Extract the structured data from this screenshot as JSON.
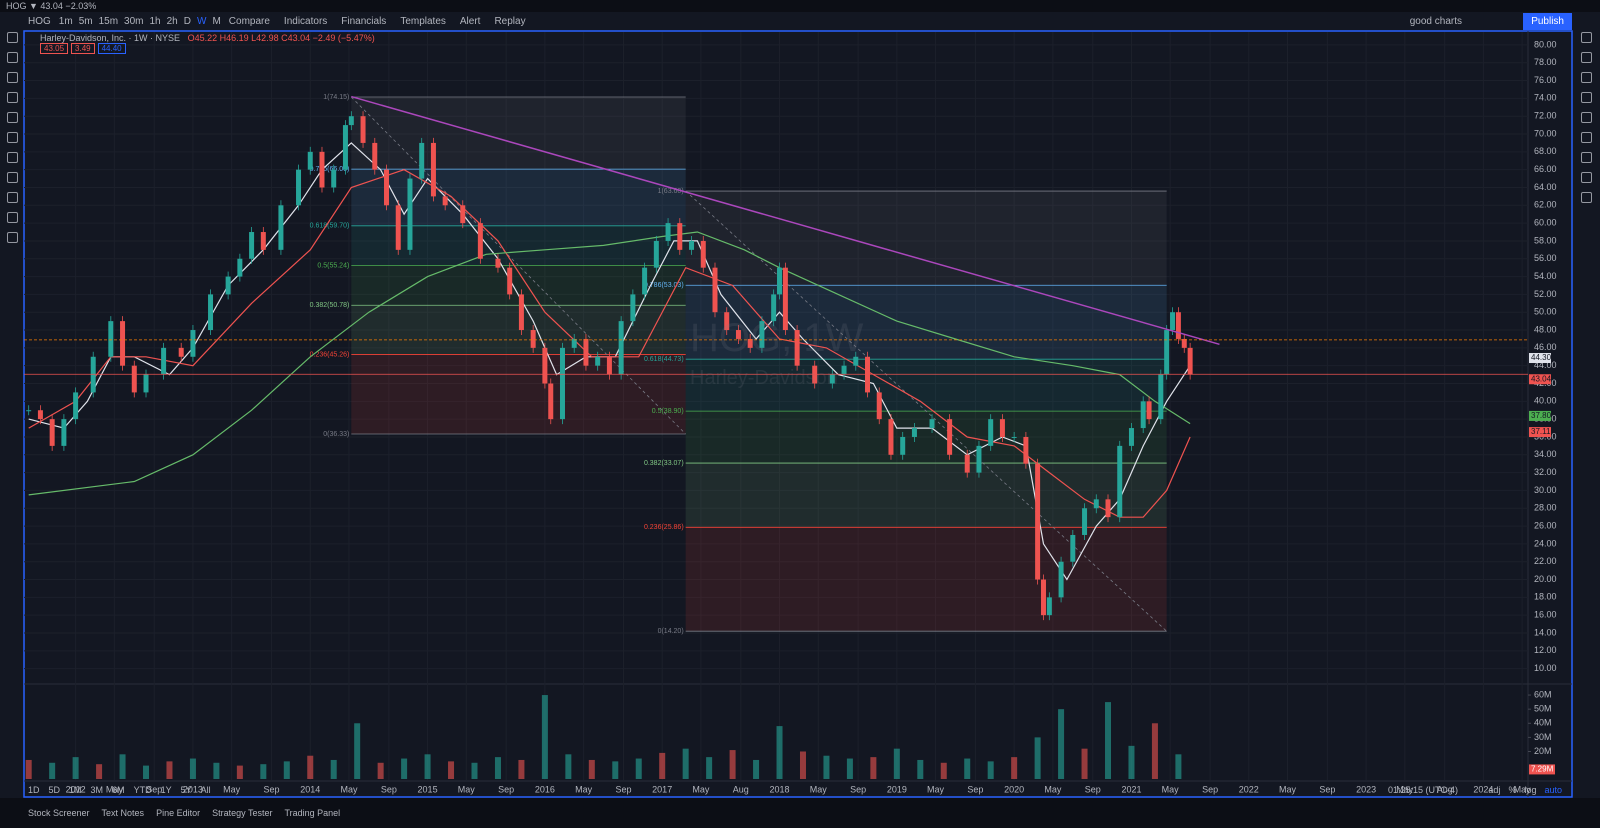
{
  "tab": {
    "title": "HOG ▼ 43.04 −2.03%"
  },
  "toolbar": {
    "symbol": "HOG",
    "intervals": [
      "1m",
      "5m",
      "15m",
      "30m",
      "1h",
      "2h",
      "D",
      "W",
      "M"
    ],
    "buttons": [
      "Compare",
      "Indicators",
      "Financials",
      "Templates",
      "Alert",
      "Replay"
    ],
    "layout_name": "good charts",
    "publish": "Publish"
  },
  "legend": {
    "name": "Harley-Davidson, Inc. · 1W · NYSE",
    "ohlc": "O45.22 H46.19 L42.98 C43.04 −2.49 (−5.47%)",
    "price_boxes": [
      "43.05",
      "3.49",
      "44.40"
    ]
  },
  "watermark": {
    "line1": "HOG, 1W",
    "line2": "Harley-Davidson"
  },
  "chart_data": {
    "type": "candlestick",
    "xlim": [
      2011.56,
      2024.38
    ],
    "ylim": [
      8.5,
      81
    ],
    "yticks": [
      {
        "value": 10,
        "label": "10.00"
      },
      {
        "value": 12,
        "label": "12.00"
      },
      {
        "value": 14,
        "label": "14.00"
      },
      {
        "value": 16,
        "label": "16.00"
      },
      {
        "value": 18,
        "label": "18.00"
      },
      {
        "value": 20,
        "label": "20.00"
      },
      {
        "value": 22,
        "label": "22.00"
      },
      {
        "value": 24,
        "label": "24.00"
      },
      {
        "value": 26,
        "label": "26.00"
      },
      {
        "value": 28,
        "label": "28.00"
      },
      {
        "value": 30,
        "label": "30.00"
      },
      {
        "value": 32,
        "label": "32.00"
      },
      {
        "value": 34,
        "label": "34.00"
      },
      {
        "value": 36,
        "label": "36.00"
      },
      {
        "value": 38,
        "label": "38.00"
      },
      {
        "value": 40,
        "label": "40.00"
      },
      {
        "value": 42,
        "label": "42.00"
      },
      {
        "value": 44,
        "label": "44.00"
      },
      {
        "value": 46,
        "label": "46.00"
      },
      {
        "value": 48,
        "label": "48.00"
      },
      {
        "value": 50,
        "label": "50.00"
      },
      {
        "value": 52,
        "label": "52.00"
      },
      {
        "value": 54,
        "label": "54.00"
      },
      {
        "value": 56,
        "label": "56.00"
      },
      {
        "value": 58,
        "label": "58.00"
      },
      {
        "value": 60,
        "label": "60.00"
      },
      {
        "value": 62,
        "label": "62.00"
      },
      {
        "value": 64,
        "label": "64.00"
      },
      {
        "value": 66,
        "label": "66.00"
      },
      {
        "value": 68,
        "label": "68.00"
      },
      {
        "value": 70,
        "label": "70.00"
      },
      {
        "value": 72,
        "label": "72.00"
      },
      {
        "value": 74,
        "label": "74.00"
      },
      {
        "value": 76,
        "label": "76.00"
      },
      {
        "value": 78,
        "label": "78.00"
      },
      {
        "value": 80,
        "label": "80.00"
      }
    ],
    "xticks": [
      2012,
      {
        "value": 2012.33,
        "label": "May"
      },
      {
        "value": 2012.67,
        "label": "Sep"
      },
      2013,
      {
        "value": 2013.33,
        "label": "May"
      },
      {
        "value": 2013.67,
        "label": "Sep"
      },
      2014,
      {
        "value": 2014.33,
        "label": "May"
      },
      {
        "value": 2014.67,
        "label": "Sep"
      },
      2015,
      {
        "value": 2015.33,
        "label": "May"
      },
      {
        "value": 2015.67,
        "label": "Sep"
      },
      2016,
      {
        "value": 2016.33,
        "label": "May"
      },
      {
        "value": 2016.67,
        "label": "Sep"
      },
      2017,
      {
        "value": 2017.33,
        "label": "May"
      },
      {
        "value": 2017.67,
        "label": "Aug"
      },
      2018,
      {
        "value": 2018.33,
        "label": "May"
      },
      {
        "value": 2018.67,
        "label": "Sep"
      },
      2019,
      {
        "value": 2019.33,
        "label": "May"
      },
      {
        "value": 2019.67,
        "label": "Sep"
      },
      2020,
      {
        "value": 2020.33,
        "label": "May"
      },
      {
        "value": 2020.67,
        "label": "Sep"
      },
      2021,
      {
        "value": 2021.33,
        "label": "May"
      },
      {
        "value": 2021.67,
        "label": "Sep"
      },
      2022,
      {
        "value": 2022.33,
        "label": "May"
      },
      {
        "value": 2022.67,
        "label": "Sep"
      },
      2023,
      {
        "value": 2023.33,
        "label": "May"
      },
      {
        "value": 2023.67,
        "label": "Aug"
      },
      2024,
      {
        "value": 2024.33,
        "label": "May"
      }
    ],
    "x": [
      2011.6,
      2011.7,
      2011.8,
      2011.9,
      2012.0,
      2012.15,
      2012.3,
      2012.4,
      2012.5,
      2012.6,
      2012.75,
      2012.9,
      2013.0,
      2013.15,
      2013.3,
      2013.4,
      2013.5,
      2013.6,
      2013.75,
      2013.9,
      2014.0,
      2014.1,
      2014.2,
      2014.3,
      2014.35,
      2014.45,
      2014.55,
      2014.65,
      2014.75,
      2014.85,
      2014.95,
      2015.05,
      2015.15,
      2015.3,
      2015.45,
      2015.6,
      2015.7,
      2015.8,
      2015.9,
      2016.0,
      2016.05,
      2016.15,
      2016.25,
      2016.35,
      2016.45,
      2016.55,
      2016.65,
      2016.75,
      2016.85,
      2016.95,
      2017.05,
      2017.15,
      2017.25,
      2017.35,
      2017.45,
      2017.55,
      2017.65,
      2017.75,
      2017.85,
      2017.95,
      2018.0,
      2018.05,
      2018.15,
      2018.3,
      2018.45,
      2018.55,
      2018.65,
      2018.75,
      2018.85,
      2018.95,
      2019.05,
      2019.15,
      2019.3,
      2019.45,
      2019.6,
      2019.7,
      2019.8,
      2019.9,
      2020.0,
      2020.1,
      2020.2,
      2020.25,
      2020.3,
      2020.4,
      2020.5,
      2020.6,
      2020.7,
      2020.8,
      2020.9,
      2021.0,
      2021.1,
      2021.15,
      2021.25,
      2021.3,
      2021.35,
      2021.4,
      2021.45,
      2021.5
    ],
    "series": [
      {
        "name": "HOG",
        "up_color": "#26a69a",
        "down_color": "#ef5350",
        "values": [
          39,
          38,
          35,
          38,
          41,
          45,
          49,
          44,
          41,
          43,
          46,
          45,
          48,
          52,
          54,
          56,
          59,
          57,
          62,
          66,
          68,
          64,
          66,
          71,
          72,
          69,
          66,
          62,
          57,
          65,
          69,
          63,
          62,
          60,
          56,
          55,
          52,
          48,
          46,
          42,
          38,
          46,
          47,
          44,
          45,
          43,
          49,
          52,
          55,
          58,
          60,
          57,
          58,
          55,
          50,
          48,
          47,
          46,
          49,
          52,
          55,
          48,
          44,
          42,
          43,
          44,
          45,
          41,
          38,
          34,
          36,
          37,
          38,
          34,
          32,
          35,
          38,
          36,
          36,
          33,
          20,
          16,
          18,
          22,
          25,
          28,
          29,
          27,
          35,
          37,
          40,
          38,
          43,
          48,
          50,
          47,
          46,
          43
        ]
      }
    ],
    "overlays": [
      {
        "color": "#e0e3eb",
        "x": [
          2011.6,
          2011.9,
          2012.1,
          2012.3,
          2012.5,
          2012.8,
          2013.0,
          2013.3,
          2013.6,
          2013.9,
          2014.1,
          2014.35,
          2014.6,
          2014.8,
          2015.0,
          2015.3,
          2015.6,
          2015.9,
          2016.1,
          2016.35,
          2016.6,
          2016.9,
          2017.1,
          2017.3,
          2017.5,
          2017.8,
          2018.0,
          2018.2,
          2018.5,
          2018.8,
          2019.0,
          2019.3,
          2019.6,
          2019.9,
          2020.1,
          2020.25,
          2020.45,
          2020.7,
          2020.9,
          2021.1,
          2021.3,
          2021.5
        ],
        "values": [
          38,
          37,
          40,
          45,
          45,
          43,
          46,
          53,
          57,
          62,
          66,
          69,
          66,
          61,
          65,
          61,
          56,
          49,
          43,
          45,
          45,
          53,
          58,
          58,
          52,
          47,
          50,
          47,
          43,
          42,
          37,
          37,
          34,
          36,
          35,
          24,
          20,
          26,
          29,
          35,
          40,
          44
        ]
      },
      {
        "color": "#ef5350",
        "x": [
          2011.6,
          2012.0,
          2012.3,
          2012.6,
          2013.0,
          2013.5,
          2014.0,
          2014.35,
          2014.8,
          2015.2,
          2015.6,
          2016.0,
          2016.4,
          2016.8,
          2017.2,
          2017.6,
          2018.0,
          2018.4,
          2018.8,
          2019.2,
          2019.6,
          2020.0,
          2020.3,
          2020.6,
          2020.9,
          2021.1,
          2021.3,
          2021.5
        ],
        "values": [
          37,
          40,
          45,
          45,
          44,
          51,
          57,
          64,
          66,
          63,
          58,
          50,
          45,
          45,
          55,
          53,
          47,
          46,
          43,
          40,
          36,
          35,
          32,
          29,
          27,
          27,
          30,
          36
        ]
      },
      {
        "color": "#66bb6a",
        "x": [
          2011.6,
          2012.5,
          2013.0,
          2013.5,
          2014.0,
          2014.5,
          2015.0,
          2015.5,
          2016.0,
          2016.5,
          2017.0,
          2017.3,
          2017.7,
          2018.0,
          2018.5,
          2019.0,
          2019.5,
          2020.0,
          2020.5,
          2020.9,
          2021.2,
          2021.5
        ],
        "values": [
          29.5,
          31,
          34,
          39,
          45,
          50,
          54,
          56.5,
          57,
          57.5,
          58.5,
          59,
          57,
          55,
          52,
          49,
          47,
          45,
          44,
          43,
          40,
          37.5
        ]
      }
    ],
    "fibs": [
      {
        "x": [
          2014.35,
          2017.2
        ],
        "levels": [
          {
            "value": 74.15,
            "label": "1(74.15)",
            "color": "#787b86"
          },
          {
            "value": 66.06,
            "label": "0.786(66.06)",
            "color": "#64b5f6"
          },
          {
            "value": 59.7,
            "label": "0.618(59.70)",
            "color": "#26a69a"
          },
          {
            "value": 55.24,
            "label": "0.5(55.24)",
            "color": "#4caf50"
          },
          {
            "value": 50.78,
            "label": "0.382(50.78)",
            "color": "#81c784"
          },
          {
            "value": 45.26,
            "label": "0.236(45.26)",
            "color": "#f44336"
          },
          {
            "value": 36.33,
            "label": "0(36.33)",
            "color": "#787b86"
          }
        ]
      },
      {
        "x": [
          2017.2,
          2021.3
        ],
        "levels": [
          {
            "value": 63.6,
            "label": "1(63.60)",
            "color": "#787b86"
          },
          {
            "value": 53.03,
            "label": "0.786(53.03)",
            "color": "#64b5f6"
          },
          {
            "value": 44.73,
            "label": "0.618(44.73)",
            "color": "#26a69a"
          },
          {
            "value": 38.9,
            "label": "0.5(38.90)",
            "color": "#4caf50"
          },
          {
            "value": 33.07,
            "label": "0.382(33.07)",
            "color": "#81c784"
          },
          {
            "value": 25.86,
            "label": "0.236(25.86)",
            "color": "#f44336"
          },
          {
            "value": 14.2,
            "label": "0(14.20)",
            "color": "#787b86"
          }
        ]
      }
    ],
    "trendline": {
      "x": [
        2014.35,
        2021.75
      ],
      "values": [
        74.2,
        46.4
      ],
      "color": "#ab47bc"
    },
    "hlines": [
      {
        "value": 46.9,
        "color": "#f57c00",
        "dash": true
      },
      {
        "value": 43.04,
        "color": "#ef5350",
        "dash": false
      }
    ],
    "price_labels": [
      {
        "value": 44.3,
        "label": "44.30",
        "color": "#e0e3eb"
      },
      {
        "value": 43.04,
        "label": "43.04",
        "color": "#ef5350"
      },
      {
        "value": 37.8,
        "label": "37.80",
        "color": "#4caf50"
      },
      {
        "value": 37.11,
        "label": "37.11",
        "color": "#ef5350"
      }
    ],
    "volume": {
      "ylim": [
        0.5,
        65
      ],
      "yticks": [
        {
          "value": 20,
          "label": "20M"
        },
        {
          "value": 30,
          "label": "30M"
        },
        {
          "value": 40,
          "label": "40M"
        },
        {
          "value": 50,
          "label": "50M"
        },
        {
          "value": 60,
          "label": "60M"
        }
      ],
      "x": [
        2011.6,
        2011.8,
        2012.0,
        2012.2,
        2012.4,
        2012.6,
        2012.8,
        2013.0,
        2013.2,
        2013.4,
        2013.6,
        2013.8,
        2014.0,
        2014.2,
        2014.4,
        2014.6,
        2014.8,
        2015.0,
        2015.2,
        2015.4,
        2015.6,
        2015.8,
        2016.0,
        2016.2,
        2016.4,
        2016.6,
        2016.8,
        2017.0,
        2017.2,
        2017.4,
        2017.6,
        2017.8,
        2018.0,
        2018.2,
        2018.4,
        2018.6,
        2018.8,
        2019.0,
        2019.2,
        2019.4,
        2019.6,
        2019.8,
        2020.0,
        2020.2,
        2020.4,
        2020.6,
        2020.8,
        2021.0,
        2021.2,
        2021.4
      ],
      "values": [
        14,
        12,
        16,
        11,
        18,
        10,
        13,
        15,
        12,
        10,
        11,
        13,
        17,
        14,
        40,
        12,
        15,
        18,
        13,
        12,
        16,
        14,
        60,
        18,
        14,
        13,
        15,
        19,
        22,
        16,
        21,
        14,
        38,
        20,
        17,
        15,
        16,
        22,
        14,
        12,
        15,
        13,
        16,
        30,
        50,
        22,
        55,
        24,
        40,
        18
      ],
      "badge": {
        "value": 7.29,
        "label": "7.29M"
      }
    }
  },
  "range_buttons": [
    "1D",
    "5D",
    "1M",
    "3M",
    "6M",
    "YTD",
    "1Y",
    "5Y",
    "All"
  ],
  "status": {
    "time": "01:25:15 (UTC-4)",
    "options": [
      "adj",
      "%",
      "log",
      "auto"
    ]
  },
  "bottom_tabs": [
    "Stock Screener",
    "Text Notes",
    "Pine Editor",
    "Strategy Tester",
    "Trading Panel"
  ]
}
